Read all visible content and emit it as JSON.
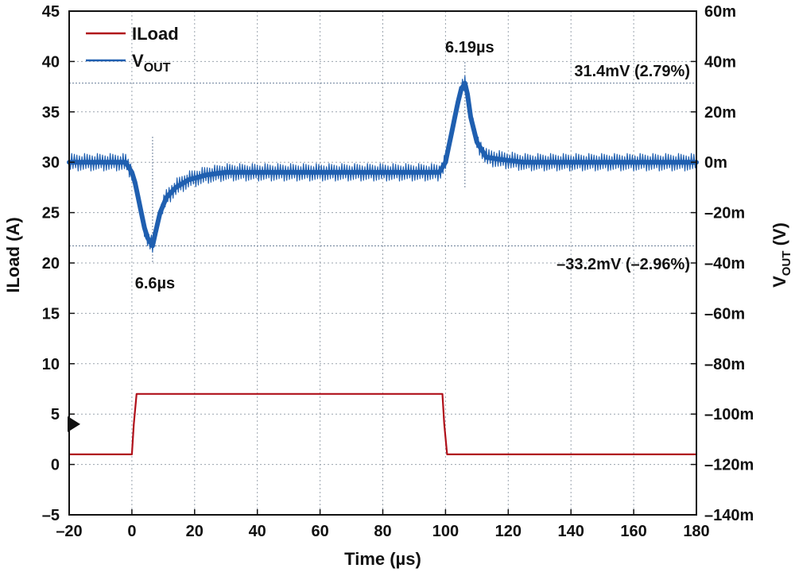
{
  "chart_data": {
    "type": "line",
    "xlabel": "Time (µs)",
    "ylabel_left": "ILoad (A)",
    "ylabel_right": {
      "main": "V",
      "sub": "OUT",
      "suffix": " (V)"
    },
    "xlim": [
      -20,
      180
    ],
    "ylim_left": [
      -5,
      45
    ],
    "ylim_right": [
      -0.14,
      0.06
    ],
    "x_ticks": [
      -20,
      0,
      20,
      40,
      60,
      80,
      100,
      120,
      140,
      160,
      180
    ],
    "x_tick_labels": [
      "–20",
      "0",
      "20",
      "40",
      "60",
      "80",
      "100",
      "120",
      "140",
      "160",
      "180"
    ],
    "y_left_ticks": [
      -5,
      0,
      5,
      10,
      15,
      20,
      25,
      30,
      35,
      40,
      45
    ],
    "y_left_tick_labels": [
      "–5",
      "0",
      "5",
      "10",
      "15",
      "20",
      "25",
      "30",
      "35",
      "40",
      "45"
    ],
    "y_right_ticks": [
      -0.14,
      -0.12,
      -0.1,
      -0.08,
      -0.06,
      -0.04,
      -0.02,
      0,
      0.02,
      0.04,
      0.06
    ],
    "y_right_tick_labels": [
      "–140m",
      "–120m",
      "–100m",
      "–80m",
      "–60m",
      "–40m",
      "–20m",
      "0m",
      "20m",
      "40m",
      "60m"
    ],
    "grid": true,
    "legend_position": "top-left",
    "series": [
      {
        "name": "ILoad",
        "axis": "left",
        "color": "#b0101a",
        "x": [
          -20,
          0,
          0.6,
          1.5,
          99,
          99.6,
          100.5,
          180
        ],
        "y": [
          1,
          1,
          4,
          7,
          7,
          4,
          1,
          1
        ]
      },
      {
        "name": "VOUT",
        "legend_main": "V",
        "legend_sub": "OUT",
        "axis": "right",
        "color": "#1f5fb0",
        "x": [
          -20,
          -2,
          0,
          1,
          2,
          3,
          4,
          5,
          6.6,
          7.5,
          9,
          11,
          14,
          18,
          24,
          30,
          40,
          60,
          80,
          98,
          100,
          101,
          102,
          103,
          104,
          105,
          106.19,
          107,
          108,
          110,
          113,
          118,
          125,
          140,
          160,
          180
        ],
        "y": [
          0.0,
          0.0,
          -0.004,
          -0.008,
          -0.014,
          -0.02,
          -0.026,
          -0.03,
          -0.0332,
          -0.028,
          -0.02,
          -0.014,
          -0.01,
          -0.007,
          -0.005,
          -0.004,
          -0.004,
          -0.004,
          -0.004,
          -0.004,
          0.0,
          0.006,
          0.012,
          0.018,
          0.024,
          0.029,
          0.0314,
          0.027,
          0.018,
          0.008,
          0.002,
          0.001,
          0.0,
          0.0,
          0.0,
          0.0
        ]
      }
    ],
    "annotations": [
      {
        "text": "6.6µs",
        "x": 6.6,
        "kind": "vline"
      },
      {
        "text": "6.19µs",
        "x": 106.19,
        "kind": "vline"
      },
      {
        "text": "31.4mV (2.79%)",
        "value": 0.0314,
        "kind": "hline"
      },
      {
        "text": "–33.2mV (–2.96%)",
        "value": -0.0332,
        "kind": "hline"
      }
    ],
    "trigger_marker": {
      "axis": "left",
      "value": 4
    }
  }
}
